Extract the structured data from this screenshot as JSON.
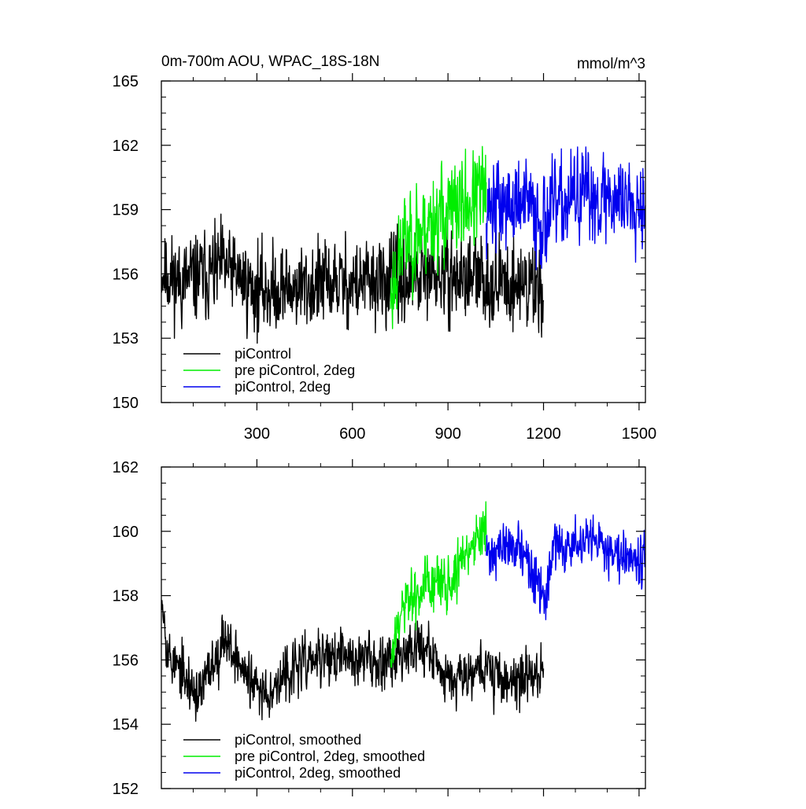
{
  "chart_data": [
    {
      "type": "line",
      "title": "0m-700m AOU, WPAC_18S-18N",
      "units": "mmol/m^3",
      "xlabel": "",
      "ylabel": "",
      "xlim": [
        0,
        1520
      ],
      "ylim": [
        150,
        165
      ],
      "yticks": [
        150,
        153,
        156,
        159,
        162,
        165
      ],
      "ytick_labels": [
        "150",
        "153",
        "156",
        "159",
        "162",
        "165"
      ],
      "xticks": [
        300,
        600,
        900,
        1200,
        1500
      ],
      "xtick_labels": [
        "300",
        "600",
        "900",
        "1200",
        "1500"
      ],
      "legend_position": "bottom-left",
      "series": [
        {
          "name": "piControl",
          "color": "#000000",
          "x_start": 1,
          "x_end": 1200,
          "mean_segments": [
            [
              1,
              156.2
            ],
            [
              60,
              155.6
            ],
            [
              200,
              156.3
            ],
            [
              300,
              155.2
            ],
            [
              500,
              155.5
            ],
            [
              720,
              155.6
            ],
            [
              900,
              155.9
            ],
            [
              1200,
              155.4
            ]
          ],
          "noise_amplitude": 1.3,
          "seed": 11
        },
        {
          "name": "pre piControl, 2deg",
          "color": "#00ee00",
          "x_start": 720,
          "x_end": 1020,
          "mean_segments": [
            [
              720,
              155.0
            ],
            [
              760,
              157.5
            ],
            [
              850,
              158.5
            ],
            [
              950,
              159.2
            ],
            [
              1020,
              159.8
            ]
          ],
          "noise_amplitude": 1.5,
          "seed": 23
        },
        {
          "name": "piControl, 2deg",
          "color": "#0000ee",
          "x_start": 1020,
          "x_end": 1520,
          "mean_segments": [
            [
              1020,
              159.2
            ],
            [
              1150,
              159.2
            ],
            [
              1200,
              158.5
            ],
            [
              1215,
              158.8
            ],
            [
              1300,
              159.6
            ],
            [
              1520,
              159.6
            ]
          ],
          "noise_amplitude": 1.4,
          "seed": 37
        }
      ]
    },
    {
      "type": "line",
      "title": "",
      "xlabel": "",
      "ylabel": "",
      "xlim": [
        0,
        1520
      ],
      "ylim": [
        152,
        162
      ],
      "yticks": [
        152,
        154,
        156,
        158,
        160,
        162
      ],
      "ytick_labels": [
        "152",
        "154",
        "156",
        "158",
        "160",
        "162"
      ],
      "xticks": [
        300,
        600,
        900,
        1200,
        1500
      ],
      "xtick_labels": [],
      "legend_position": "bottom-left",
      "series": [
        {
          "name": "piControl, smoothed",
          "color": "#000000",
          "x_start": 1,
          "x_end": 1200,
          "mean_segments": [
            [
              1,
              158.3
            ],
            [
              20,
              156.2
            ],
            [
              80,
              155.3
            ],
            [
              120,
              154.9
            ],
            [
              200,
              156.8
            ],
            [
              260,
              155.6
            ],
            [
              300,
              155.0
            ],
            [
              360,
              155.2
            ],
            [
              420,
              155.8
            ],
            [
              520,
              156.1
            ],
            [
              720,
              156.0
            ],
            [
              800,
              156.6
            ],
            [
              900,
              155.5
            ],
            [
              1000,
              155.8
            ],
            [
              1100,
              155.3
            ],
            [
              1200,
              155.7
            ]
          ],
          "noise_amplitude": 0.55,
          "seed": 53
        },
        {
          "name": "pre piControl, 2deg, smoothed",
          "color": "#00ee00",
          "x_start": 720,
          "x_end": 1020,
          "mean_segments": [
            [
              720,
              155.9
            ],
            [
              760,
              157.6
            ],
            [
              850,
              158.4
            ],
            [
              900,
              158.3
            ],
            [
              950,
              159.2
            ],
            [
              1020,
              160.1
            ]
          ],
          "noise_amplitude": 0.6,
          "seed": 61
        },
        {
          "name": "piControl, 2deg, smoothed",
          "color": "#0000ee",
          "x_start": 1020,
          "x_end": 1520,
          "mean_segments": [
            [
              1020,
              159.3
            ],
            [
              1120,
              159.6
            ],
            [
              1190,
              158.1
            ],
            [
              1205,
              157.8
            ],
            [
              1230,
              159.5
            ],
            [
              1350,
              159.6
            ],
            [
              1450,
              159.4
            ],
            [
              1520,
              159.2
            ]
          ],
          "noise_amplitude": 0.5,
          "seed": 71
        }
      ]
    }
  ]
}
